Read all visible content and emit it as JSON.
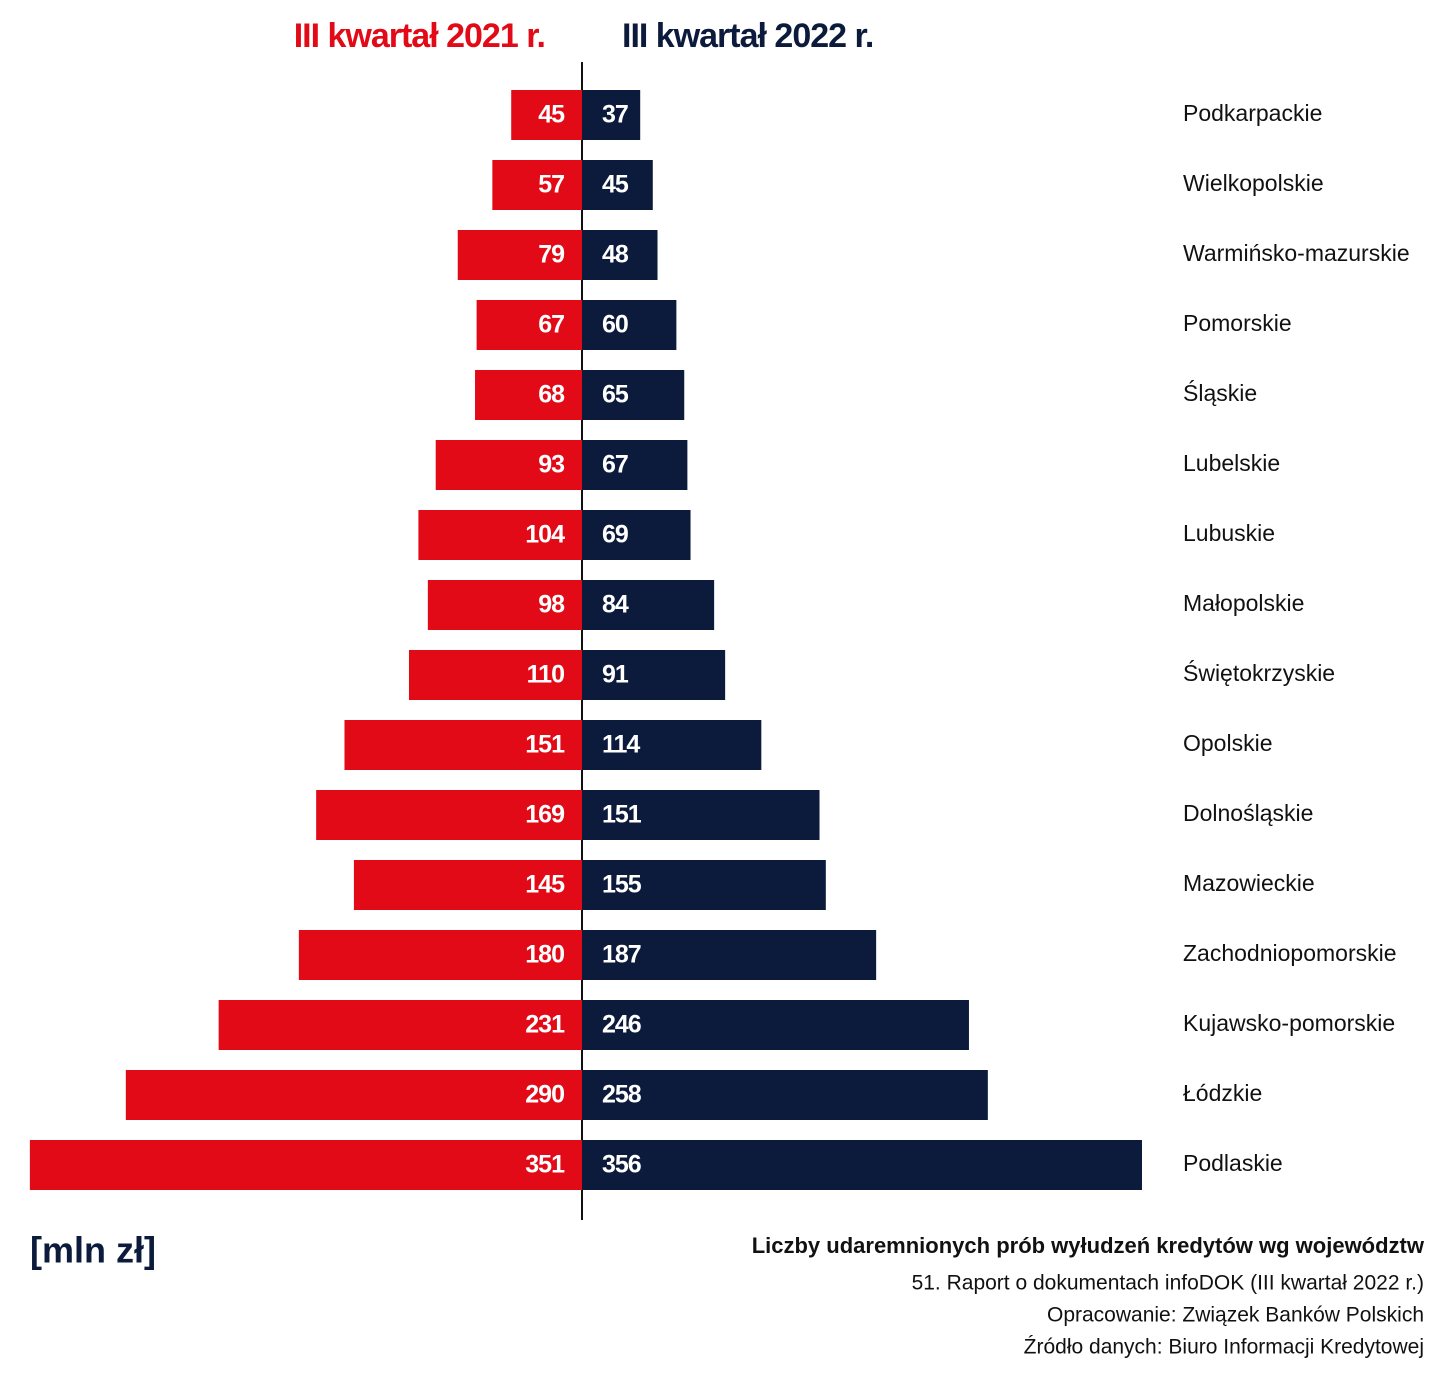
{
  "chart_data": {
    "type": "butterfly",
    "title": "Liczby udaremnionych prób wyłudzeń kredytów wg województw",
    "unit_label": "[mln zł]",
    "source_lines": [
      "51. Raport o dokumentach infoDOK (III kwartał 2022 r.)",
      "Opracowanie: Związek Banków Polskich",
      "Źródło danych: Biuro Informacji Kredytowej"
    ],
    "categories": [
      "Podkarpackie",
      "Wielkopolskie",
      "Warmińsko-mazurskie",
      "Pomorskie",
      "Śląskie",
      "Lubelskie",
      "Lubuskie",
      "Małopolskie",
      "Świętokrzyskie",
      "Opolskie",
      "Dolnośląskie",
      "Mazowieckie",
      "Zachodniopomorskie",
      "Kujawsko-pomorskie",
      "Łódzkie",
      "Podlaskie"
    ],
    "series": [
      {
        "name": "III kwartał 2021 r.",
        "color": "#e20a16",
        "values": [
          45,
          57,
          79,
          67,
          68,
          93,
          104,
          98,
          110,
          151,
          169,
          145,
          180,
          231,
          290,
          351
        ]
      },
      {
        "name": "III kwartał 2022 r.",
        "color": "#0c1b3c",
        "values": [
          37,
          45,
          48,
          60,
          65,
          67,
          69,
          84,
          91,
          114,
          151,
          155,
          187,
          246,
          258,
          356
        ]
      }
    ]
  }
}
